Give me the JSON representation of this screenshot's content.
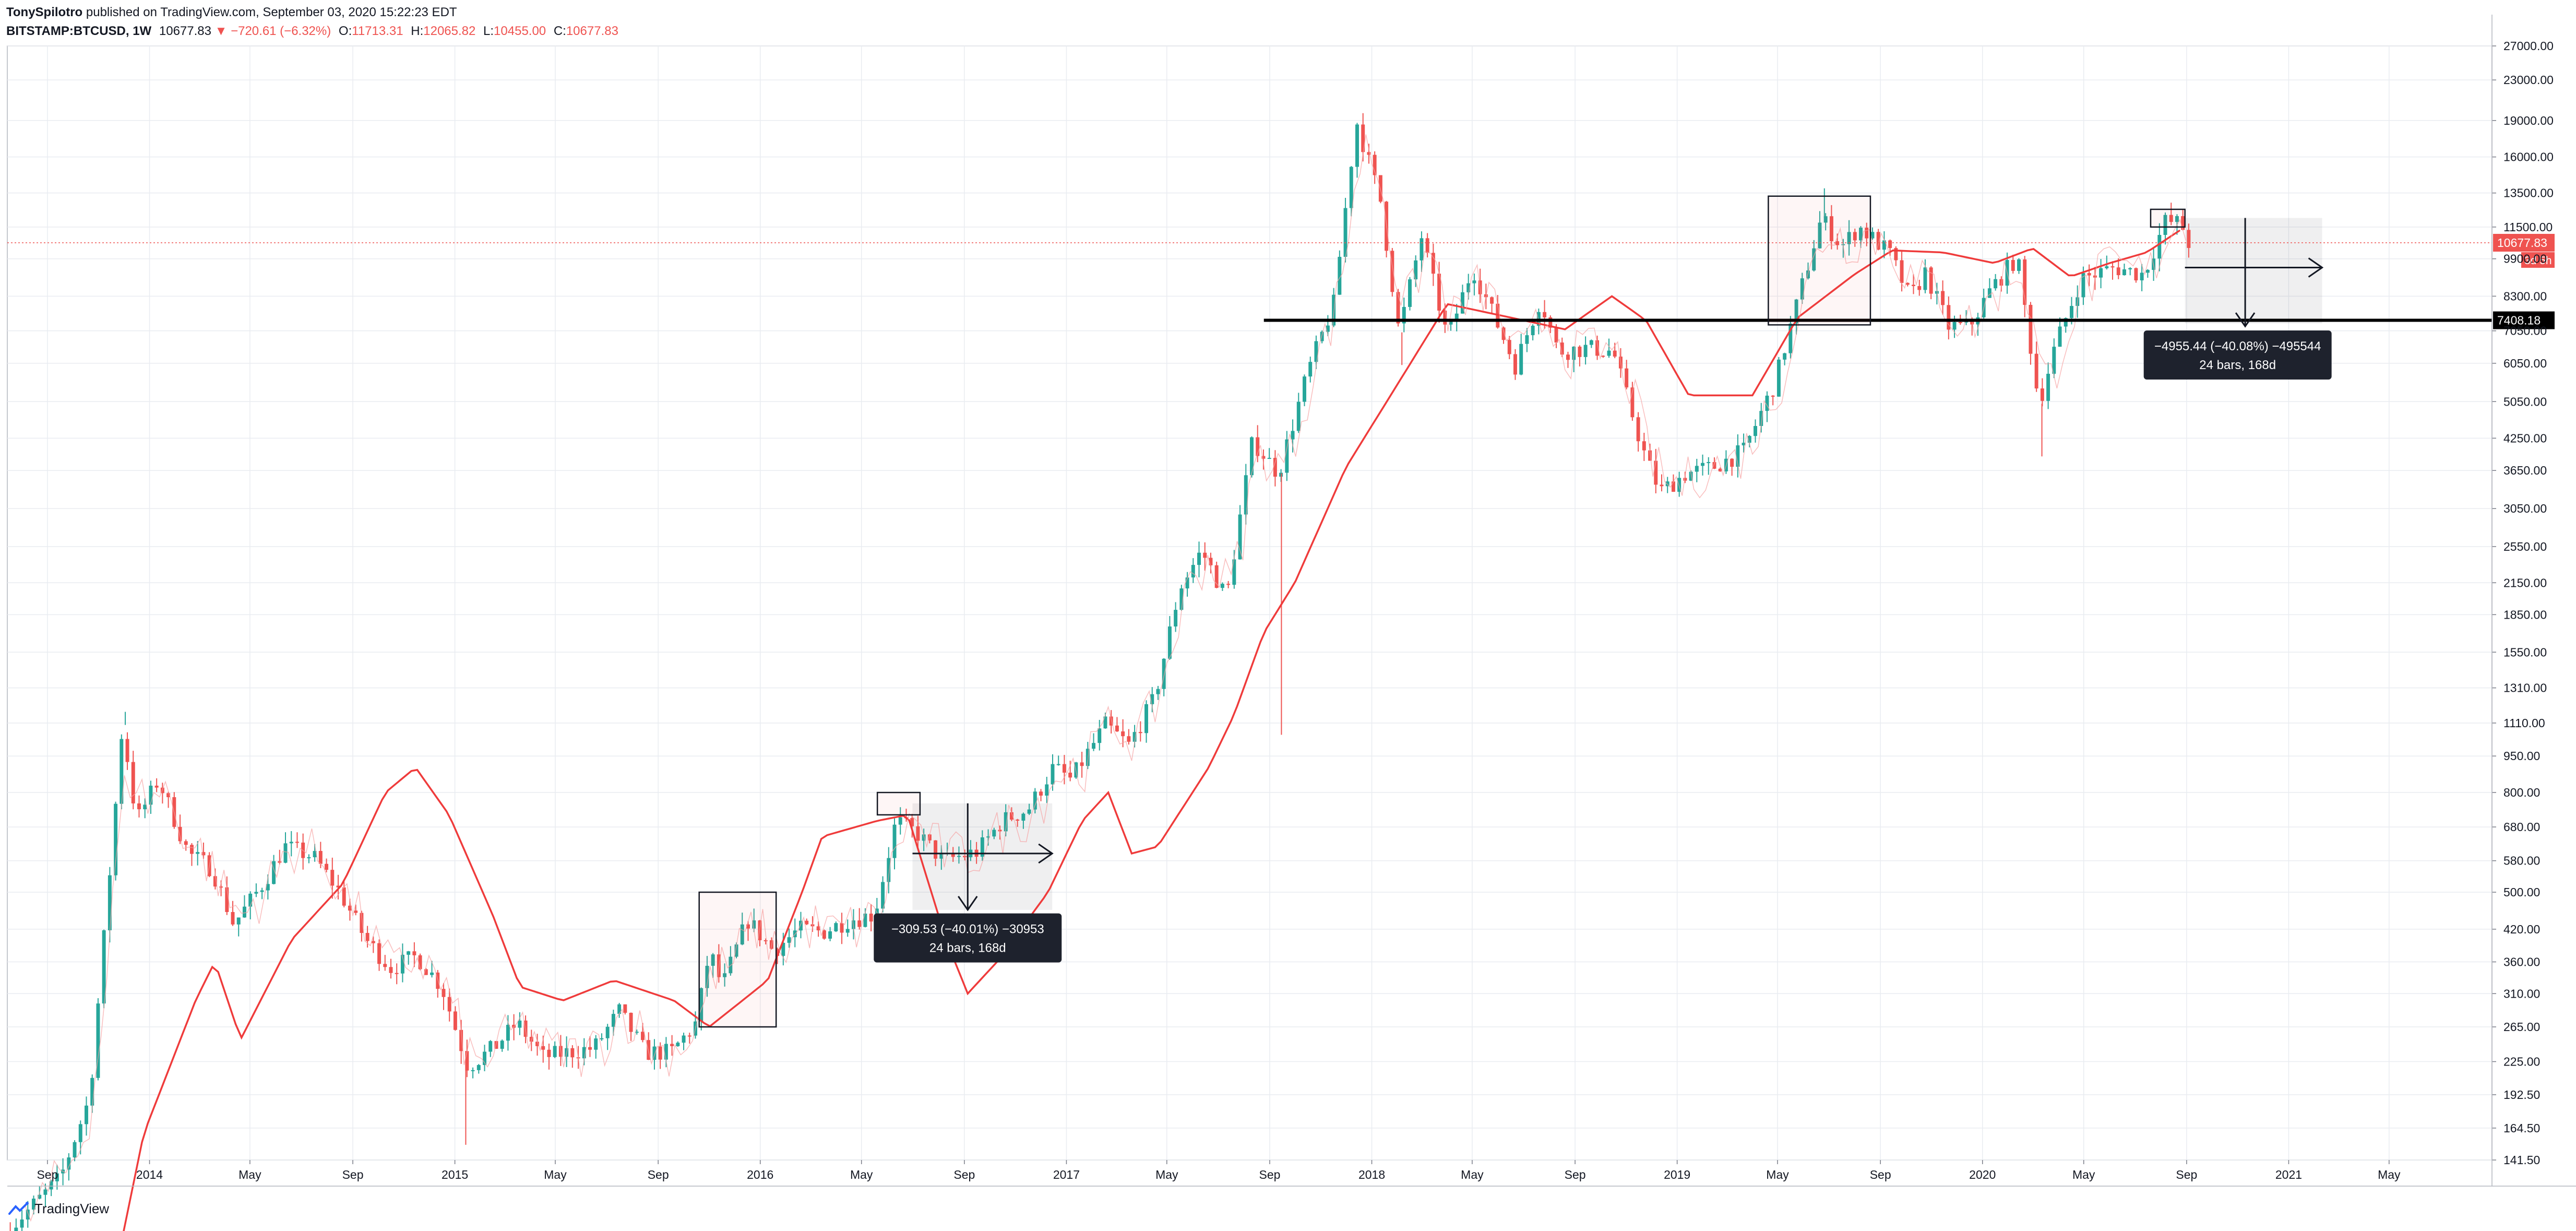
{
  "header": {
    "author": "TonySpilotro",
    "published": "published on TradingView.com, September 03, 2020 15:22:23 EDT",
    "symbol": "BITSTAMP:BTCUSD, 1W",
    "last": "10677.83",
    "arrow": "▼",
    "change": "−720.61 (−6.32%)",
    "o_label": "O:",
    "o_value": "11713.31",
    "h_label": "H:",
    "h_value": "12065.82",
    "l_label": "L:",
    "l_value": "10455.00",
    "c_label": "C:",
    "c_value": "10677.83"
  },
  "colors": {
    "up": "#26a69a",
    "down": "#ef5350",
    "ma": "#ef3b3b",
    "grid": "#e9ecf1",
    "level": "#000000"
  },
  "chart_data": {
    "type": "candlestick",
    "y_scale": "log",
    "ylim": [
      141.5,
      27000
    ],
    "xlim": [
      "2013-07-15",
      "2021-09-01"
    ],
    "y_ticks": [
      "27000.00",
      "23000.00",
      "19000.00",
      "16000.00",
      "13500.00",
      "11500.00",
      "9900.00",
      "8300.00",
      "7050.00",
      "6050.00",
      "5050.00",
      "4250.00",
      "3650.00",
      "3050.00",
      "2550.00",
      "2150.00",
      "1850.00",
      "1550.00",
      "1310.00",
      "1110.00",
      "950.00",
      "800.00",
      "680.00",
      "580.00",
      "500.00",
      "420.00",
      "360.00",
      "310.00",
      "265.00",
      "225.00",
      "192.50",
      "164.50",
      "141.50"
    ],
    "x_ticks": [
      {
        "label": "Sep",
        "date": "2013-09-01"
      },
      {
        "label": "2014",
        "date": "2014-01-01"
      },
      {
        "label": "May",
        "date": "2014-05-01"
      },
      {
        "label": "Sep",
        "date": "2014-09-01"
      },
      {
        "label": "2015",
        "date": "2015-01-01"
      },
      {
        "label": "May",
        "date": "2015-05-01"
      },
      {
        "label": "Sep",
        "date": "2015-09-01"
      },
      {
        "label": "2016",
        "date": "2016-01-01"
      },
      {
        "label": "May",
        "date": "2016-05-01"
      },
      {
        "label": "Sep",
        "date": "2016-09-01"
      },
      {
        "label": "2017",
        "date": "2017-01-01"
      },
      {
        "label": "May",
        "date": "2017-05-01"
      },
      {
        "label": "Sep",
        "date": "2017-09-01"
      },
      {
        "label": "2018",
        "date": "2018-01-01"
      },
      {
        "label": "May",
        "date": "2018-05-01"
      },
      {
        "label": "Sep",
        "date": "2018-09-01"
      },
      {
        "label": "2019",
        "date": "2019-01-01"
      },
      {
        "label": "May",
        "date": "2019-05-01"
      },
      {
        "label": "Sep",
        "date": "2019-09-01"
      },
      {
        "label": "2020",
        "date": "2020-01-01"
      },
      {
        "label": "May",
        "date": "2020-05-01"
      },
      {
        "label": "Sep",
        "date": "2020-09-01"
      },
      {
        "label": "2021",
        "date": "2021-01-01"
      },
      {
        "label": "May",
        "date": "2021-05-01"
      }
    ],
    "price_keypoints": [
      [
        "2013-07-15",
        100
      ],
      [
        "2013-09-20",
        130
      ],
      [
        "2013-10-25",
        190
      ],
      [
        "2013-11-20",
        600
      ],
      [
        "2013-12-03",
        1100
      ],
      [
        "2013-12-20",
        700
      ],
      [
        "2014-01-15",
        850
      ],
      [
        "2014-02-20",
        600
      ],
      [
        "2014-03-20",
        560
      ],
      [
        "2014-04-15",
        430
      ],
      [
        "2014-05-20",
        520
      ],
      [
        "2014-06-15",
        620
      ],
      [
        "2014-07-20",
        590
      ],
      [
        "2014-08-20",
        500
      ],
      [
        "2014-09-20",
        400
      ],
      [
        "2014-10-20",
        350
      ],
      [
        "2014-11-20",
        370
      ],
      [
        "2014-12-20",
        320
      ],
      [
        "2015-01-20",
        220
      ],
      [
        "2015-02-20",
        240
      ],
      [
        "2015-03-20",
        270
      ],
      [
        "2015-04-20",
        230
      ],
      [
        "2015-05-20",
        235
      ],
      [
        "2015-06-20",
        240
      ],
      [
        "2015-07-20",
        285
      ],
      [
        "2015-08-20",
        235
      ],
      [
        "2015-09-20",
        235
      ],
      [
        "2015-10-20",
        270
      ],
      [
        "2015-11-05",
        380
      ],
      [
        "2015-11-20",
        320
      ],
      [
        "2015-12-20",
        440
      ],
      [
        "2016-01-20",
        380
      ],
      [
        "2016-02-20",
        420
      ],
      [
        "2016-03-20",
        415
      ],
      [
        "2016-04-20",
        440
      ],
      [
        "2016-05-20",
        450
      ],
      [
        "2016-06-15",
        700
      ],
      [
        "2016-07-10",
        660
      ],
      [
        "2016-08-10",
        580
      ],
      [
        "2016-09-20",
        605
      ],
      [
        "2016-10-20",
        700
      ],
      [
        "2016-11-20",
        740
      ],
      [
        "2016-12-20",
        900
      ],
      [
        "2017-01-10",
        850
      ],
      [
        "2017-02-20",
        1100
      ],
      [
        "2017-03-20",
        1000
      ],
      [
        "2017-04-20",
        1250
      ],
      [
        "2017-05-20",
        2100
      ],
      [
        "2017-06-15",
        2500
      ],
      [
        "2017-07-15",
        2000
      ],
      [
        "2017-08-15",
        4200
      ],
      [
        "2017-09-15",
        3600
      ],
      [
        "2017-10-20",
        5800
      ],
      [
        "2017-11-20",
        8000
      ],
      [
        "2017-12-17",
        19000
      ],
      [
        "2018-01-15",
        13000
      ],
      [
        "2018-02-06",
        7000
      ],
      [
        "2018-03-05",
        11000
      ],
      [
        "2018-04-05",
        6800
      ],
      [
        "2018-05-05",
        9500
      ],
      [
        "2018-06-25",
        6000
      ],
      [
        "2018-07-25",
        8200
      ],
      [
        "2018-08-15",
        6400
      ],
      [
        "2018-09-20",
        6500
      ],
      [
        "2018-10-20",
        6400
      ],
      [
        "2018-11-25",
        4000
      ],
      [
        "2018-12-15",
        3300
      ],
      [
        "2019-01-15",
        3600
      ],
      [
        "2019-02-15",
        3700
      ],
      [
        "2019-03-25",
        4000
      ],
      [
        "2019-05-01",
        5500
      ],
      [
        "2019-06-01",
        8500
      ],
      [
        "2019-06-26",
        12000
      ],
      [
        "2019-07-20",
        10500
      ],
      [
        "2019-08-10",
        11500
      ],
      [
        "2019-09-15",
        10200
      ],
      [
        "2019-10-10",
        8200
      ],
      [
        "2019-10-28",
        9300
      ],
      [
        "2019-11-25",
        7200
      ],
      [
        "2019-12-20",
        7200
      ],
      [
        "2020-01-15",
        8600
      ],
      [
        "2020-02-15",
        10000
      ],
      [
        "2020-03-12",
        5000
      ],
      [
        "2020-04-01",
        6600
      ],
      [
        "2020-05-01",
        9000
      ],
      [
        "2020-06-10",
        9500
      ],
      [
        "2020-07-15",
        9200
      ],
      [
        "2020-08-10",
        11800
      ],
      [
        "2020-08-30",
        11700
      ],
      [
        "2020-09-03",
        10677
      ]
    ],
    "ma_keypoints": [
      [
        "2013-11-25",
        90
      ],
      [
        "2013-12-25",
        160
      ],
      [
        "2014-02-25",
        300
      ],
      [
        "2014-03-20",
        360
      ],
      [
        "2014-04-20",
        250
      ],
      [
        "2014-06-20",
        400
      ],
      [
        "2014-08-20",
        520
      ],
      [
        "2014-10-10",
        800
      ],
      [
        "2014-11-15",
        900
      ],
      [
        "2014-12-25",
        720
      ],
      [
        "2015-02-15",
        450
      ],
      [
        "2015-03-20",
        320
      ],
      [
        "2015-05-10",
        300
      ],
      [
        "2015-07-10",
        330
      ],
      [
        "2015-09-20",
        300
      ],
      [
        "2015-11-01",
        265
      ],
      [
        "2016-01-10",
        330
      ],
      [
        "2016-02-20",
        500
      ],
      [
        "2016-03-15",
        650
      ],
      [
        "2016-05-20",
        700
      ],
      [
        "2016-06-25",
        720
      ],
      [
        "2016-08-10",
        400
      ],
      [
        "2016-09-05",
        310
      ],
      [
        "2016-10-10",
        360
      ],
      [
        "2016-12-10",
        500
      ],
      [
        "2017-01-20",
        700
      ],
      [
        "2017-02-20",
        800
      ],
      [
        "2017-03-20",
        600
      ],
      [
        "2017-04-20",
        620
      ],
      [
        "2017-06-20",
        900
      ],
      [
        "2017-07-20",
        1150
      ],
      [
        "2017-08-25",
        1700
      ],
      [
        "2017-10-01",
        2150
      ],
      [
        "2017-12-01",
        3700
      ],
      [
        "2018-02-15",
        6000
      ],
      [
        "2018-04-01",
        8000
      ],
      [
        "2018-06-01",
        7600
      ],
      [
        "2018-08-20",
        7100
      ],
      [
        "2018-10-15",
        8300
      ],
      [
        "2018-11-25",
        7400
      ],
      [
        "2019-01-15",
        5200
      ],
      [
        "2019-04-01",
        5200
      ],
      [
        "2019-05-25",
        7500
      ],
      [
        "2019-08-01",
        9200
      ],
      [
        "2019-09-15",
        10300
      ],
      [
        "2019-11-15",
        10200
      ],
      [
        "2020-01-15",
        9700
      ],
      [
        "2020-03-01",
        10400
      ],
      [
        "2020-04-15",
        9100
      ],
      [
        "2020-06-01",
        9700
      ],
      [
        "2020-07-15",
        10200
      ],
      [
        "2020-08-30",
        11500
      ]
    ],
    "spike_wicks": [
      [
        "2013-12-03",
        1170
      ],
      [
        "2015-01-14",
        152
      ],
      [
        "2017-09-15",
        1050
      ],
      [
        "2018-02-06",
        6000
      ],
      [
        "2020-03-12",
        3900
      ],
      [
        "2019-06-26",
        13800
      ]
    ],
    "level_line": {
      "value": 7408.18,
      "label": "7408.18",
      "from": "2017-08-25"
    },
    "price_tag": {
      "value": 10677.83,
      "label": "10677.83"
    },
    "countdown_label": "3d 5h",
    "boxes": [
      {
        "from": "2015-10-20",
        "to": "2016-01-20",
        "low": 265,
        "high": 500
      },
      {
        "from": "2016-05-20",
        "to": "2016-07-10",
        "low": 720,
        "high": 800
      },
      {
        "from": "2019-04-20",
        "to": "2019-08-20",
        "low": 7250,
        "high": 13300
      },
      {
        "from": "2020-07-20",
        "to": "2020-08-30",
        "low": 11500,
        "high": 12500
      }
    ],
    "measures": [
      {
        "shade_from": "2016-07-01",
        "shade_to": "2016-12-15",
        "shade_high": 760,
        "shade_low": 460,
        "h_from": "2016-07-01",
        "h_to": "2016-12-15",
        "h_y": 600,
        "v_date": "2016-09-05",
        "v_from": 760,
        "v_to": 460,
        "label_line1": "−309.53 (−40.01%) −30953",
        "label_line2": "24 bars, 168d",
        "label_date": "2016-09-05",
        "label_y": 410
      },
      {
        "shade_from": "2020-08-30",
        "shade_to": "2021-02-10",
        "shade_high": 12000,
        "shade_low": 7300,
        "h_from": "2020-08-30",
        "h_to": "2021-02-10",
        "h_y": 9500,
        "v_date": "2020-11-10",
        "v_from": 12000,
        "v_to": 7200,
        "label_line1": "−4955.44 (−40.08%) −495544",
        "label_line2": "24 bars, 168d",
        "label_date": "2020-11-01",
        "label_y": 6400
      }
    ]
  },
  "footer": {
    "logo_text": "TradingView"
  }
}
